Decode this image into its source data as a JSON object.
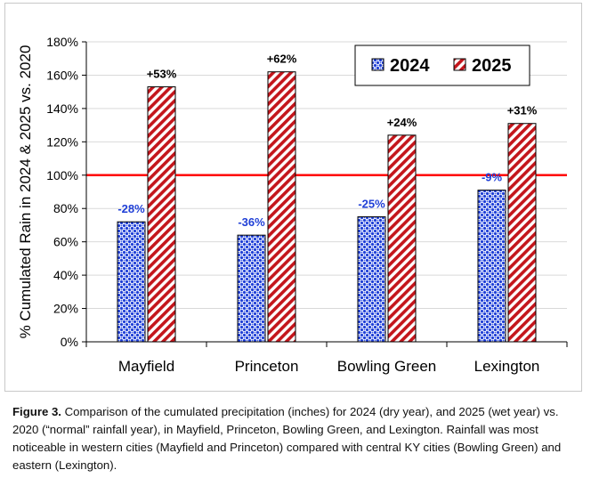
{
  "caption": {
    "label": "Figure 3.",
    "text": "Comparison of the cumulated precipitation (inches) for 2024 (dry year), and 2025 (wet year) vs. 2020 (“normal” rainfall year), in Mayfield, Princeton, Bowling Green, and Lexington. Rainfall was most noticeable in western cities (Mayfield and Princeton) compared with central KY cities (Bowling Green) and eastern (Lexington)."
  },
  "colors": {
    "series_2024": "#1f3fd6",
    "series_2025": "#c4161c",
    "reference_line": "#ff0000",
    "label_2024": "#1f3fd6",
    "label_2025": "#000000"
  },
  "chart_data": {
    "type": "bar",
    "title": "",
    "xlabel": "",
    "ylabel": "% Cumulated Rain in 2024 & 2025 vs. 2020",
    "categories": [
      "Mayfield",
      "Princeton",
      "Bowling Green",
      "Lexington"
    ],
    "series": [
      {
        "name": "2024",
        "values": [
          72,
          64,
          75,
          91
        ],
        "labels": [
          "-28%",
          "-36%",
          "-25%",
          "-9%"
        ]
      },
      {
        "name": "2025",
        "values": [
          153,
          162,
          124,
          131
        ],
        "labels": [
          "+53%",
          "+62%",
          "+24%",
          "+31%"
        ]
      }
    ],
    "ylim": [
      0,
      180
    ],
    "yticks": [
      0,
      20,
      40,
      60,
      80,
      100,
      120,
      140,
      160,
      180
    ],
    "ytick_labels": [
      "0%",
      "20%",
      "40%",
      "60%",
      "80%",
      "100%",
      "120%",
      "140%",
      "160%",
      "180%"
    ],
    "reference_value": 100,
    "grid": true,
    "legend_position": "top-right"
  }
}
